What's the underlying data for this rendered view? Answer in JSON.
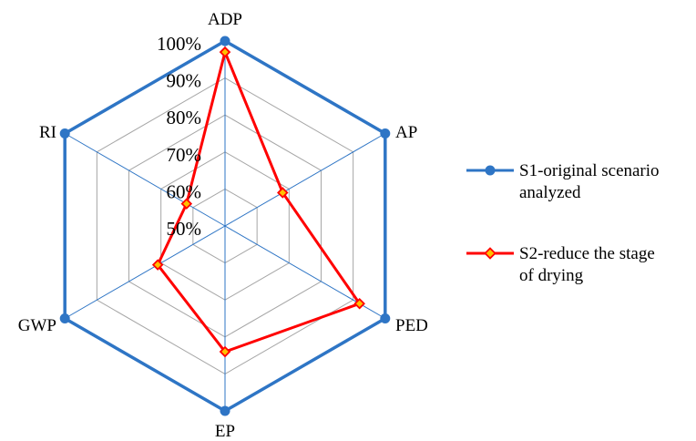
{
  "chart_data": {
    "type": "radar",
    "axes": [
      "ADP",
      "AP",
      "PED",
      "EP",
      "GWP",
      "RI"
    ],
    "r_ticks": [
      "50%",
      "60%",
      "70%",
      "80%",
      "90%",
      "100%"
    ],
    "r_range": [
      50,
      100
    ],
    "grid": true,
    "legend_position": "right",
    "series": [
      {
        "name": "S1-original scenario analyzed",
        "values": [
          100,
          100,
          100,
          100,
          100,
          100
        ],
        "color": "#2E75C5",
        "marker": "circle"
      },
      {
        "name": "S2-reduce the stage of drying",
        "values": [
          97,
          68,
          92,
          84,
          71,
          62
        ],
        "color": "#FF0000",
        "marker": "diamond",
        "marker_fill": "#FFC000"
      }
    ]
  }
}
